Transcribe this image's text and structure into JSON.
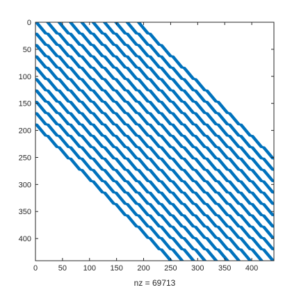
{
  "chart_data": {
    "type": "spy",
    "description_type": "sparsity-pattern",
    "xlabel": "nz = 69713",
    "marker_color": "#0072BD",
    "matrix_size": 441,
    "block_size": 21,
    "block_bandwidth": 9,
    "xlim": [
      0,
      441
    ],
    "ylim": [
      0,
      441
    ],
    "y_reversed": true,
    "xticks": [
      0,
      50,
      100,
      150,
      200,
      250,
      300,
      350,
      400
    ],
    "yticks": [
      0,
      50,
      100,
      150,
      200,
      250,
      300,
      350,
      400
    ],
    "grid": false,
    "legend": "none"
  }
}
